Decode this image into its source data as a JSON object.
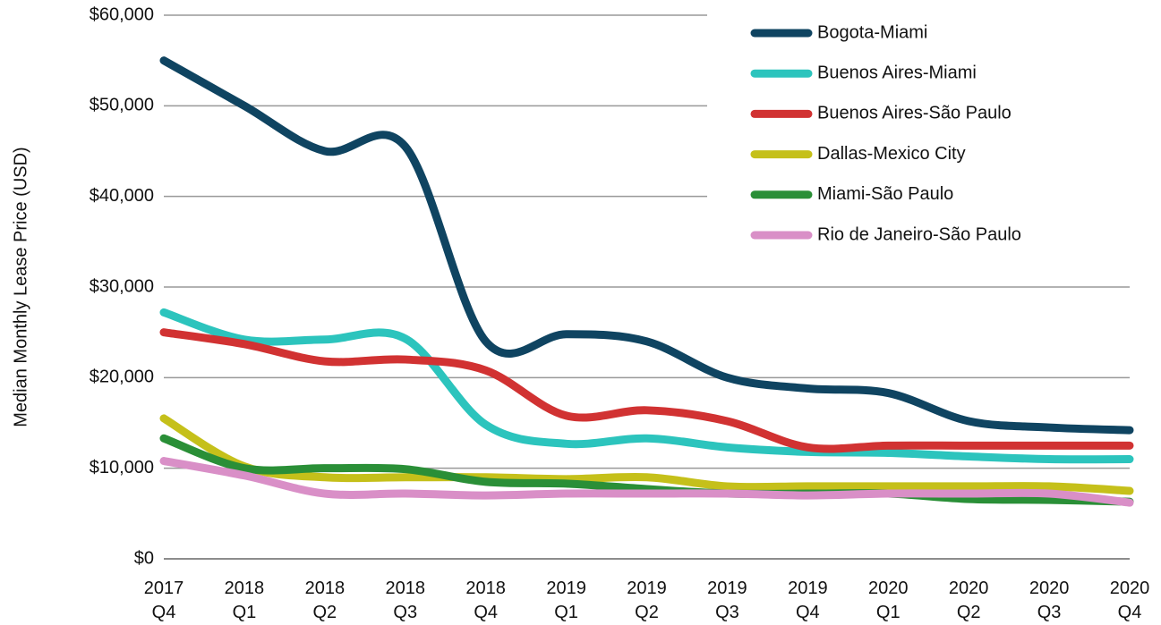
{
  "chart_data": {
    "type": "line",
    "y_label": "Median Monthly Lease Price (USD)",
    "categories": [
      "2017 Q4",
      "2018 Q1",
      "2018 Q2",
      "2018 Q3",
      "2018 Q4",
      "2019 Q1",
      "2019 Q2",
      "2019 Q3",
      "2019 Q4",
      "2020 Q1",
      "2020 Q2",
      "2020 Q3",
      "2020 Q4"
    ],
    "series": [
      {
        "name": "Bogota-Miami",
        "color": "#0f4461",
        "values": [
          55000,
          50000,
          45000,
          45500,
          24000,
          24800,
          24000,
          20000,
          18800,
          18300,
          15200,
          14500,
          14200
        ]
      },
      {
        "name": "Buenos Aires-Miami",
        "color": "#2cc4bd",
        "values": [
          27200,
          24200,
          24200,
          24300,
          14800,
          12700,
          13300,
          12300,
          11800,
          11700,
          11300,
          11000,
          11000
        ]
      },
      {
        "name": "Buenos Aires-São Paulo",
        "color": "#d13232",
        "values": [
          25000,
          23700,
          21800,
          22000,
          20800,
          15800,
          16400,
          15200,
          12300,
          12500,
          12500,
          12500,
          12500
        ]
      },
      {
        "name": "Dallas-Mexico City",
        "color": "#c5c01a",
        "values": [
          15500,
          10200,
          9000,
          9000,
          9000,
          8800,
          9000,
          8000,
          8000,
          8000,
          8000,
          8000,
          7500
        ]
      },
      {
        "name": "Miami-São Paulo",
        "color": "#2a8f37",
        "values": [
          13300,
          10000,
          10000,
          9900,
          8500,
          8300,
          7700,
          7200,
          7200,
          7200,
          6600,
          6500,
          6300
        ]
      },
      {
        "name": "Rio de Janeiro-São Paulo",
        "color": "#d98fc7",
        "values": [
          10800,
          9200,
          7200,
          7200,
          7000,
          7200,
          7200,
          7200,
          7000,
          7200,
          7200,
          7200,
          6200
        ]
      }
    ],
    "ylim": [
      0,
      60000
    ],
    "yticks": [
      {
        "value": 0,
        "label": "$0"
      },
      {
        "value": 10000,
        "label": "$10,000"
      },
      {
        "value": 20000,
        "label": "$20,000"
      },
      {
        "value": 30000,
        "label": "$30,000"
      },
      {
        "value": 40000,
        "label": "$40,000"
      },
      {
        "value": 50000,
        "label": "$50,000"
      },
      {
        "value": 60000,
        "label": "$60,000"
      }
    ],
    "grid": true,
    "legend": "top-right"
  }
}
